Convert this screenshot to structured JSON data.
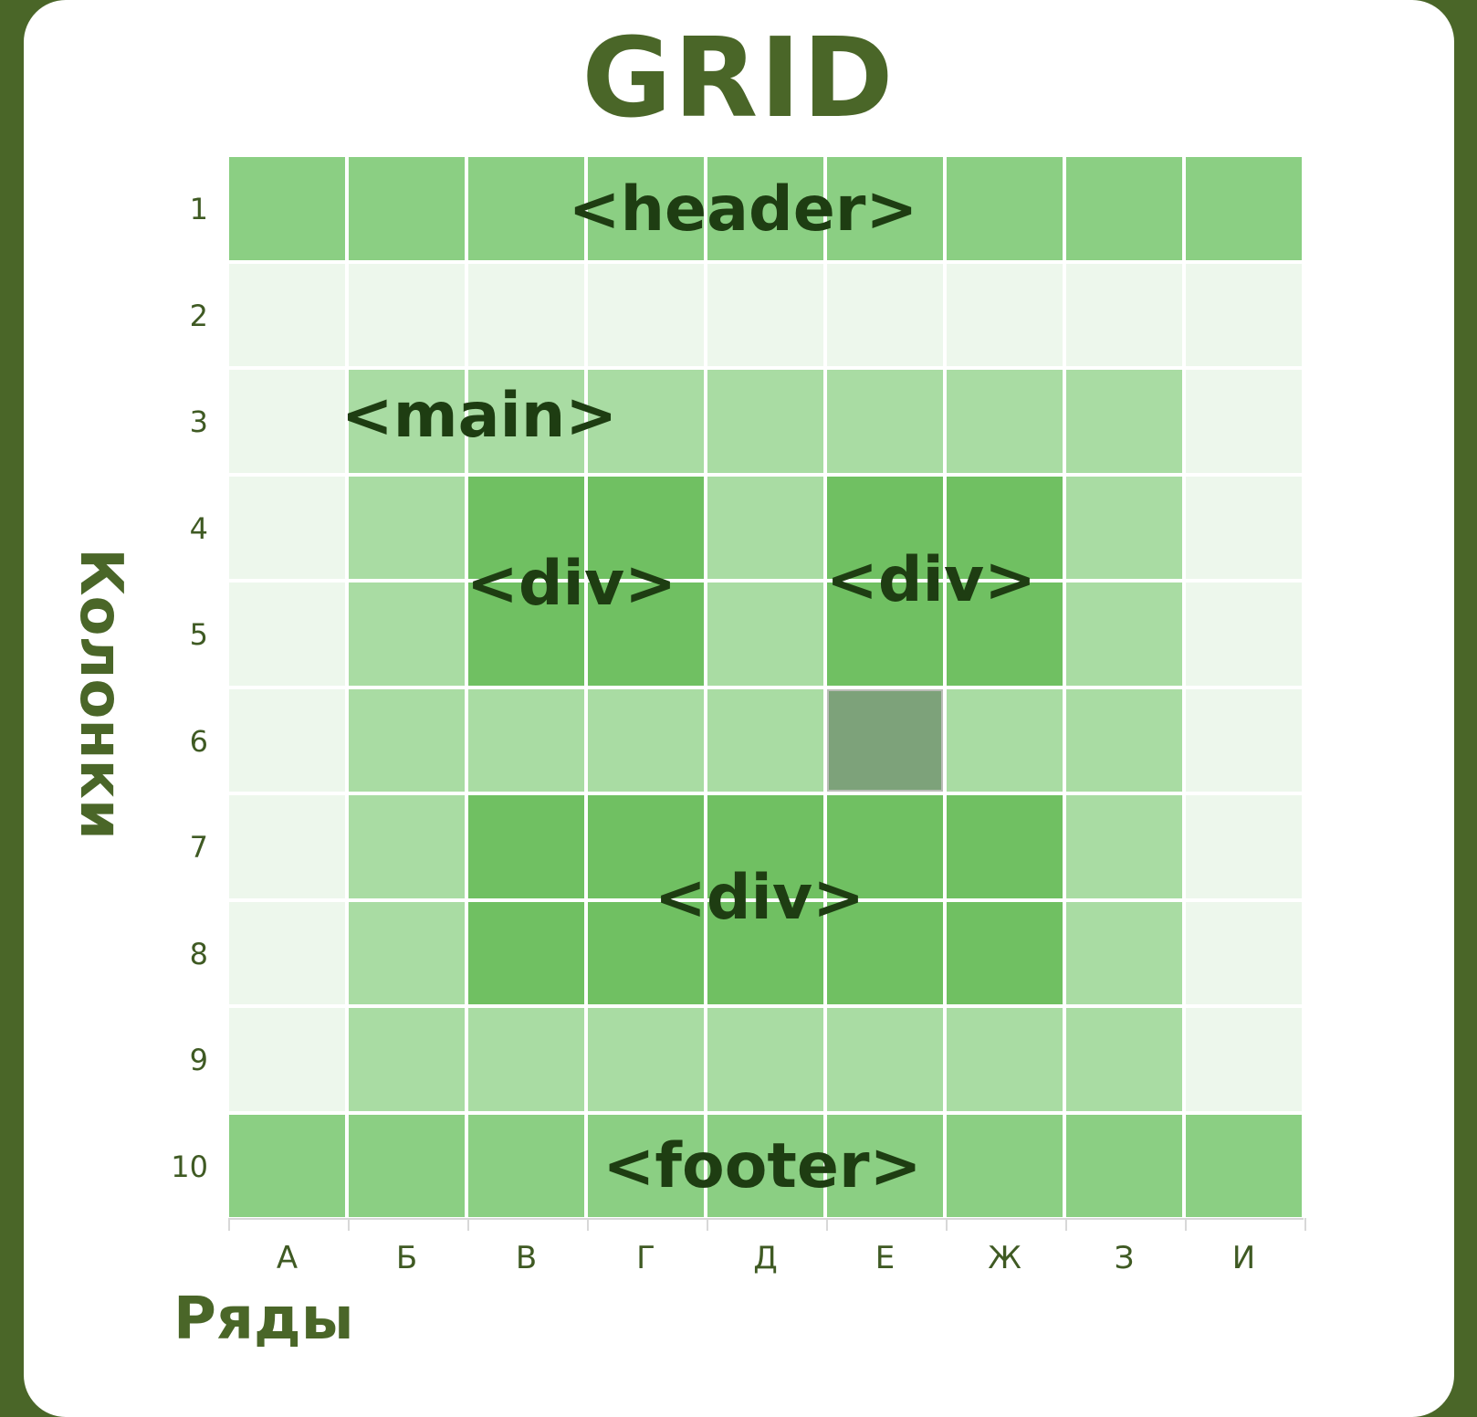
{
  "title": "GRID",
  "y_axis_label": "Колонки",
  "x_axis_label": "Ряды",
  "row_numbers": [
    "1",
    "2",
    "3",
    "4",
    "5",
    "6",
    "7",
    "8",
    "9",
    "10"
  ],
  "column_letters": [
    "А",
    "Б",
    "В",
    "Г",
    "Д",
    "Е",
    "Ж",
    "З",
    "И"
  ],
  "areas": {
    "header": "<header>",
    "main": "<main>",
    "div_left": "<div>",
    "div_right": "<div>",
    "div_bottom": "<div>",
    "footer": "<footer>"
  },
  "colors": {
    "background": "#4a6628",
    "header_footer": "#8bcf83",
    "empty": "#edf7ec",
    "main": "#a9dca3",
    "div": "#70c062",
    "highlight": "#7da27a",
    "tag_text": "#1e3d12"
  },
  "cell_map": [
    [
      "H",
      "H",
      "H",
      "H",
      "H",
      "H",
      "H",
      "H",
      "H"
    ],
    [
      "E",
      "E",
      "E",
      "E",
      "E",
      "E",
      "E",
      "E",
      "E"
    ],
    [
      "E",
      "M",
      "M",
      "M",
      "M",
      "M",
      "M",
      "M",
      "E"
    ],
    [
      "E",
      "M",
      "D",
      "D",
      "M",
      "D",
      "D",
      "M",
      "E"
    ],
    [
      "E",
      "M",
      "D",
      "D",
      "M",
      "D",
      "D",
      "M",
      "E"
    ],
    [
      "E",
      "M",
      "M",
      "M",
      "M",
      "X",
      "M",
      "M",
      "E"
    ],
    [
      "E",
      "M",
      "D",
      "D",
      "D",
      "D",
      "D",
      "M",
      "E"
    ],
    [
      "E",
      "M",
      "D",
      "D",
      "D",
      "D",
      "D",
      "M",
      "E"
    ],
    [
      "E",
      "M",
      "M",
      "M",
      "M",
      "M",
      "M",
      "M",
      "E"
    ],
    [
      "H",
      "H",
      "H",
      "H",
      "H",
      "H",
      "H",
      "H",
      "H"
    ]
  ]
}
